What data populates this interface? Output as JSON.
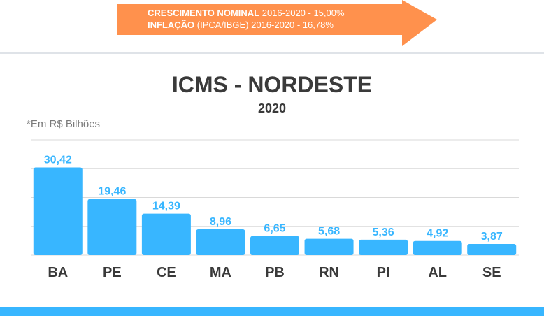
{
  "banner": {
    "line1_bold": "CRESCIMENTO NOMINAL",
    "line1_rest": "2016-2020 - 15,00%",
    "line2_bold": "INFLAÇÃO",
    "line2_rest": "(IPCA/IBGE) 2016-2020 - 16,78%"
  },
  "chart_data": {
    "type": "bar",
    "title": "ICMS - NORDESTE",
    "subtitle": "2020",
    "unit_note": "*Em R$ Bilhões",
    "categories": [
      "BA",
      "PE",
      "CE",
      "MA",
      "PB",
      "RN",
      "PI",
      "AL",
      "SE"
    ],
    "values": [
      30.42,
      19.46,
      14.39,
      8.96,
      6.65,
      5.68,
      5.36,
      4.92,
      3.87
    ],
    "value_labels": [
      "30,42",
      "19,46",
      "14,39",
      "8,96",
      "6,65",
      "5,68",
      "5,36",
      "4,92",
      "3,87"
    ],
    "ylim": [
      0,
      40
    ],
    "grid": true,
    "colors": {
      "bar": "#38b6ff",
      "label": "#38b6ff",
      "category": "#3a3a3a",
      "grid": "#d9d9d9"
    }
  },
  "colors": {
    "arrow": "#ff914d",
    "footer": "#38b6ff",
    "divider": "#dfe3e8"
  }
}
